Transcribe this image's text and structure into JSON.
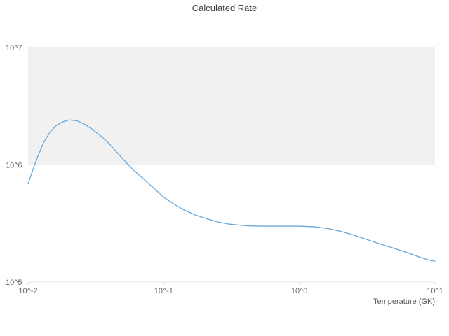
{
  "chart_data": {
    "type": "line",
    "title": "Calculated Rate",
    "xlabel": "Temperature (GK)",
    "ylabel": "",
    "x_scale": "log",
    "y_scale": "log",
    "xlim": [
      0.01,
      10
    ],
    "ylim": [
      100000,
      10000000
    ],
    "grid": "horizontal-only",
    "legend": "none",
    "x_ticks": [
      {
        "value": 0.01,
        "label": "10^-2"
      },
      {
        "value": 0.1,
        "label": "10^-1"
      },
      {
        "value": 1,
        "label": "10^0"
      },
      {
        "value": 10,
        "label": "10^1"
      }
    ],
    "y_ticks": [
      {
        "value": 100000,
        "label": "10^5"
      },
      {
        "value": 1000000,
        "label": "10^6"
      },
      {
        "value": 10000000,
        "label": "10^7"
      }
    ],
    "shaded_band": {
      "y_from": 1000000,
      "y_to": 10000000,
      "color": "#f1f1f1"
    },
    "colors": {
      "line": "#69a8d8",
      "grid": "#e4e4e4",
      "tick_text": "#666666",
      "title_text": "#3f3f3f"
    },
    "series": [
      {
        "name": "Calculated Rate",
        "x": [
          0.01,
          0.0115,
          0.013,
          0.0145,
          0.016,
          0.018,
          0.02,
          0.023,
          0.026,
          0.03,
          0.035,
          0.04,
          0.046,
          0.052,
          0.06,
          0.07,
          0.08,
          0.1,
          0.12,
          0.14,
          0.17,
          0.2,
          0.25,
          0.3,
          0.4,
          0.5,
          0.7,
          1.0,
          1.3,
          1.6,
          2.0,
          2.5,
          3.0,
          4.0,
          5.0,
          6.0,
          7.0,
          8.0,
          9.0,
          10.0
        ],
        "y": [
          690000,
          1100000,
          1550000,
          1900000,
          2150000,
          2330000,
          2420000,
          2380000,
          2230000,
          2000000,
          1740000,
          1500000,
          1250000,
          1070000,
          900000,
          770000,
          670000,
          530000,
          460000,
          415000,
          375000,
          352000,
          326000,
          313000,
          303000,
          300000,
          300000,
          300000,
          296000,
          287000,
          272000,
          252000,
          235000,
          210000,
          194000,
          181000,
          170000,
          161000,
          154000,
          151000
        ]
      }
    ]
  }
}
